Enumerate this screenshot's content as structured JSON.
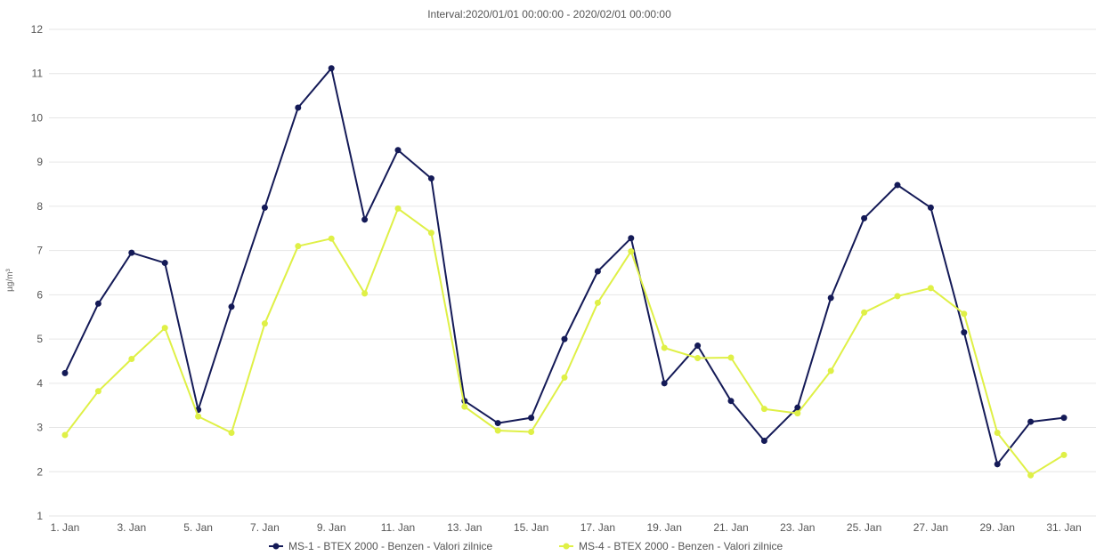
{
  "chart_data": {
    "type": "line",
    "subtitle": "Interval:2020/01/01 00:00:00 - 2020/02/01 00:00:00",
    "ylabel": "µg/m³",
    "ylim": [
      1,
      12
    ],
    "yticks": [
      "1",
      "2",
      "3",
      "4",
      "5",
      "6",
      "7",
      "8",
      "9",
      "10",
      "11",
      "12"
    ],
    "x": [
      "1. Jan",
      "2. Jan",
      "3. Jan",
      "4. Jan",
      "5. Jan",
      "6. Jan",
      "7. Jan",
      "8. Jan",
      "9. Jan",
      "10. Jan",
      "11. Jan",
      "12. Jan",
      "13. Jan",
      "14. Jan",
      "15. Jan",
      "16. Jan",
      "17. Jan",
      "18. Jan",
      "19. Jan",
      "20. Jan",
      "21. Jan",
      "22. Jan",
      "23. Jan",
      "24. Jan",
      "25. Jan",
      "26. Jan",
      "27. Jan",
      "28. Jan",
      "29. Jan",
      "30. Jan",
      "31. Jan"
    ],
    "xtick_labels": [
      "1. Jan",
      "3. Jan",
      "5. Jan",
      "7. Jan",
      "9. Jan",
      "11. Jan",
      "13. Jan",
      "15. Jan",
      "17. Jan",
      "19. Jan",
      "21. Jan",
      "23. Jan",
      "25. Jan",
      "27. Jan",
      "29. Jan",
      "31. Jan"
    ],
    "grid": true,
    "legend_position": "bottom-center",
    "series": [
      {
        "name": "MS-1 - BTEX 2000 - Benzen - Valori zilnice",
        "color": "#141a57",
        "values": [
          4.23,
          5.8,
          6.95,
          6.72,
          3.4,
          5.73,
          7.97,
          10.23,
          11.12,
          7.7,
          9.27,
          8.63,
          3.6,
          3.1,
          3.22,
          5.0,
          6.53,
          7.28,
          4.0,
          4.85,
          3.6,
          2.7,
          3.45,
          5.93,
          7.73,
          8.48,
          7.97,
          5.15,
          2.17,
          3.13,
          3.22
        ]
      },
      {
        "name": "MS-4 - BTEX 2000 - Benzen - Valori zilnice",
        "color": "#dff046",
        "values": [
          2.83,
          3.82,
          4.55,
          5.25,
          3.25,
          2.88,
          5.35,
          7.1,
          7.27,
          6.03,
          7.95,
          7.4,
          3.47,
          2.93,
          2.9,
          4.13,
          5.82,
          6.98,
          4.8,
          4.57,
          4.58,
          3.42,
          3.32,
          4.28,
          5.6,
          5.97,
          6.15,
          5.57,
          2.88,
          1.92,
          2.38
        ]
      }
    ]
  }
}
